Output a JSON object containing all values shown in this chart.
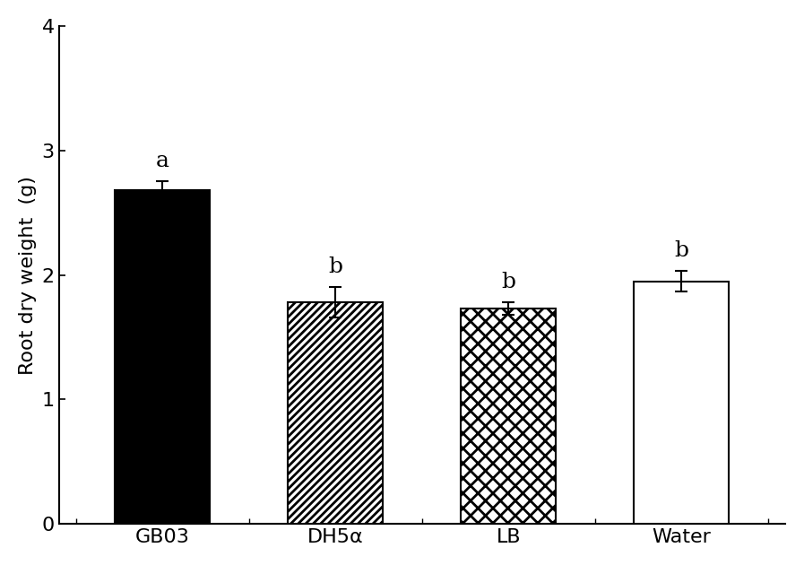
{
  "categories": [
    "GB03",
    "DH5α",
    "LB",
    "Water"
  ],
  "values": [
    2.68,
    1.78,
    1.73,
    1.95
  ],
  "errors": [
    0.07,
    0.12,
    0.05,
    0.08
  ],
  "significance": [
    "a",
    "b",
    "b",
    "b"
  ],
  "ylabel": "Root dry weight  (g)",
  "ylim": [
    0,
    4
  ],
  "yticks": [
    0,
    1,
    2,
    3,
    4
  ],
  "bar_width": 0.55,
  "hatch_patterns": [
    "",
    "////",
    "xx",
    ""
  ],
  "face_colors": [
    "black",
    "white",
    "white",
    "white"
  ],
  "edge_colors": [
    "black",
    "black",
    "black",
    "black"
  ],
  "background_color": "#ffffff",
  "label_fontsize": 16,
  "tick_fontsize": 16,
  "sig_fontsize": 18,
  "xtick_fontsize": 16
}
